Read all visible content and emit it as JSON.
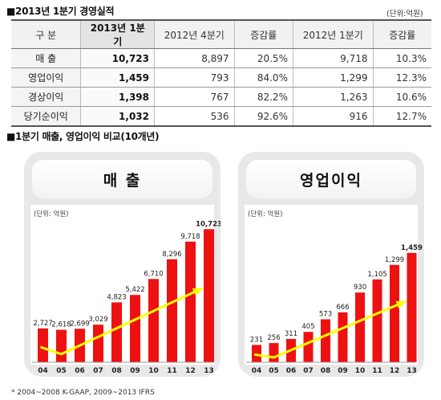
{
  "table_section": {
    "title": "■2013년 1분기 경영실적",
    "unit": "(단위:억원)",
    "headers": [
      "구  분",
      "2013년 1분기",
      "2012년 4분기",
      "증감률",
      "2012년 1분기",
      "증감률"
    ],
    "rows": [
      {
        "label": "매    출",
        "q1_2013": "10,723",
        "q4_2012": "8,897",
        "qoq": "20.5%",
        "q1_2012": "9,718",
        "yoy": "10.3%"
      },
      {
        "label": "영업이익",
        "q1_2013": "1,459",
        "q4_2012": "793",
        "qoq": "84.0%",
        "q1_2012": "1,299",
        "yoy": "12.3%"
      },
      {
        "label": "경상이익",
        "q1_2013": "1,398",
        "q4_2012": "767",
        "qoq": "82.2%",
        "q1_2012": "1,263",
        "yoy": "10.6%"
      },
      {
        "label": "당기순이익",
        "q1_2013": "1,032",
        "q4_2012": "536",
        "qoq": "92.6%",
        "q1_2012": "916",
        "yoy": "12.7%"
      }
    ]
  },
  "chart_section": {
    "title": "■1분기 매출, 영업이익 비교(10개년)",
    "footnote": "* 2004~2008 K-GAAP, 2009~2013 IFRS"
  },
  "colors": {
    "bar": "#ee1111",
    "trend": "#ffff00",
    "panel": "#e8e8e8"
  },
  "chart_data": [
    {
      "type": "bar",
      "title": "매 출",
      "unit": "(단위: 억원)",
      "categories": [
        "04",
        "05",
        "06",
        "07",
        "08",
        "09",
        "10",
        "11",
        "12",
        "13"
      ],
      "values": [
        2727,
        2618,
        2699,
        3029,
        4823,
        5422,
        6710,
        8296,
        9718,
        10723
      ],
      "value_labels": [
        "2,727",
        "2,618",
        "2,699",
        "3,029",
        "4,823",
        "5,422",
        "6,710",
        "8,296",
        "9,718",
        "10,723"
      ],
      "ylim": [
        0,
        11000
      ],
      "trend_arrow": true
    },
    {
      "type": "bar",
      "title": "영업이익",
      "unit": "(단위: 억원)",
      "categories": [
        "04",
        "05",
        "06",
        "07",
        "08",
        "09",
        "10",
        "11",
        "12",
        "13"
      ],
      "values": [
        231,
        256,
        311,
        405,
        573,
        666,
        930,
        1105,
        1299,
        1459
      ],
      "value_labels": [
        "231",
        "256",
        "311",
        "405",
        "573",
        "666",
        "930",
        "1,105",
        "1,299",
        "1,459"
      ],
      "ylim": [
        0,
        1500
      ],
      "trend_arrow": true
    }
  ]
}
